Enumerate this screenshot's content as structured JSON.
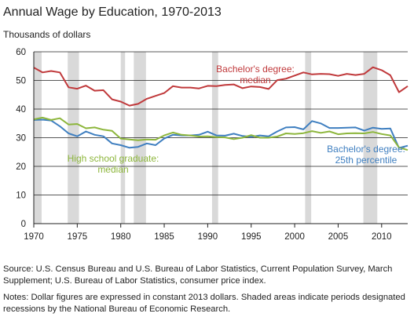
{
  "chart_data": {
    "type": "line",
    "title": "Annual Wage by Education, 1970-2013",
    "ylabel": "Thousands of dollars",
    "xlim": [
      1970,
      2013
    ],
    "ylim": [
      0,
      60
    ],
    "x_ticks": [
      1970,
      1975,
      1980,
      1985,
      1990,
      1995,
      2000,
      2005,
      2010
    ],
    "y_ticks": [
      0,
      10,
      20,
      30,
      40,
      50,
      60
    ],
    "grid": "horizontal",
    "recessions": [
      [
        1970,
        1970.9
      ],
      [
        1973.9,
        1975.2
      ],
      [
        1980,
        1980.5
      ],
      [
        1981.5,
        1982.9
      ],
      [
        1990.5,
        1991.2
      ],
      [
        2001.2,
        2001.9
      ],
      [
        2007.9,
        2009.5
      ]
    ],
    "series": [
      {
        "name": "Bachelor's degree: median",
        "annotation": [
          "Bachelor's degree:",
          "median"
        ],
        "color": "#c0393b",
        "x": [
          1970,
          1971,
          1972,
          1973,
          1974,
          1975,
          1976,
          1977,
          1978,
          1979,
          1980,
          1981,
          1982,
          1983,
          1984,
          1985,
          1986,
          1987,
          1988,
          1989,
          1990,
          1991,
          1992,
          1993,
          1994,
          1995,
          1996,
          1997,
          1998,
          1999,
          2000,
          2001,
          2002,
          2003,
          2004,
          2005,
          2006,
          2007,
          2008,
          2009,
          2010,
          2011,
          2012,
          2013
        ],
        "values": [
          54.5,
          52.8,
          53.3,
          52.8,
          47.6,
          47.1,
          48.2,
          46.4,
          46.6,
          43.4,
          42.6,
          41.2,
          41.8,
          43.6,
          44.6,
          45.6,
          48.0,
          47.5,
          47.5,
          47.2,
          48.1,
          48.0,
          48.4,
          48.6,
          47.3,
          47.9,
          47.7,
          47.0,
          50.1,
          50.6,
          51.7,
          52.8,
          52.1,
          52.3,
          52.2,
          51.6,
          52.3,
          51.9,
          52.3,
          54.6,
          53.6,
          51.8,
          45.9,
          48.0
        ]
      },
      {
        "name": "Bachelor's degree: 25th percentile",
        "annotation": [
          "Bachelor's degree:",
          "25th percentile"
        ],
        "color": "#3f7fc0",
        "x": [
          1970,
          1971,
          1972,
          1973,
          1974,
          1975,
          1976,
          1977,
          1978,
          1979,
          1980,
          1981,
          1982,
          1983,
          1984,
          1985,
          1986,
          1987,
          1988,
          1989,
          1990,
          1991,
          1992,
          1993,
          1994,
          1995,
          1996,
          1997,
          1998,
          1999,
          2000,
          2001,
          2002,
          2003,
          2004,
          2005,
          2006,
          2007,
          2008,
          2009,
          2010,
          2011,
          2012,
          2013
        ],
        "values": [
          36.2,
          36.3,
          36.0,
          34.0,
          31.5,
          30.5,
          32.2,
          31.0,
          30.5,
          28.0,
          27.4,
          26.5,
          26.8,
          28.0,
          27.4,
          29.7,
          31.0,
          30.8,
          30.8,
          31.0,
          32.1,
          30.8,
          30.7,
          31.4,
          30.6,
          30.3,
          30.8,
          30.5,
          32.2,
          33.6,
          33.7,
          32.9,
          35.8,
          35.0,
          33.4,
          33.4,
          33.5,
          33.6,
          32.5,
          33.5,
          33.1,
          33.2,
          26.4,
          27.2
        ]
      },
      {
        "name": "High school graduate: median",
        "annotation": [
          "High school graduate:",
          "median"
        ],
        "color": "#8db63c",
        "x": [
          1970,
          1971,
          1972,
          1973,
          1974,
          1975,
          1976,
          1977,
          1978,
          1979,
          1980,
          1981,
          1982,
          1983,
          1984,
          1985,
          1986,
          1987,
          1988,
          1989,
          1990,
          1991,
          1992,
          1993,
          1994,
          1995,
          1996,
          1997,
          1998,
          1999,
          2000,
          2001,
          2002,
          2003,
          2004,
          2005,
          2006,
          2007,
          2008,
          2009,
          2010,
          2011,
          2012,
          2013
        ],
        "values": [
          36.4,
          37.0,
          36.2,
          36.8,
          34.6,
          34.8,
          33.3,
          33.6,
          32.8,
          32.4,
          29.7,
          29.4,
          29.1,
          29.4,
          29.3,
          30.8,
          31.8,
          31.0,
          30.8,
          30.4,
          30.5,
          30.2,
          30.1,
          29.5,
          30.0,
          30.9,
          30.0,
          30.0,
          30.4,
          31.5,
          31.3,
          31.6,
          32.3,
          31.7,
          32.2,
          31.2,
          31.5,
          31.6,
          31.5,
          32.0,
          31.3,
          30.8,
          26.6,
          25.7
        ]
      }
    ]
  },
  "source_text": "Source: U.S. Census Bureau and U.S. Bureau of Labor Statistics, Current Population Survey, March Supplement; U.S. Bureau of Labor Statistics, consumer price index.",
  "notes_text": "Notes: Dollar figures are expressed in constant 2013 dollars. Shaded areas indicate periods designated recessions by the National Bureau of Economic Research."
}
